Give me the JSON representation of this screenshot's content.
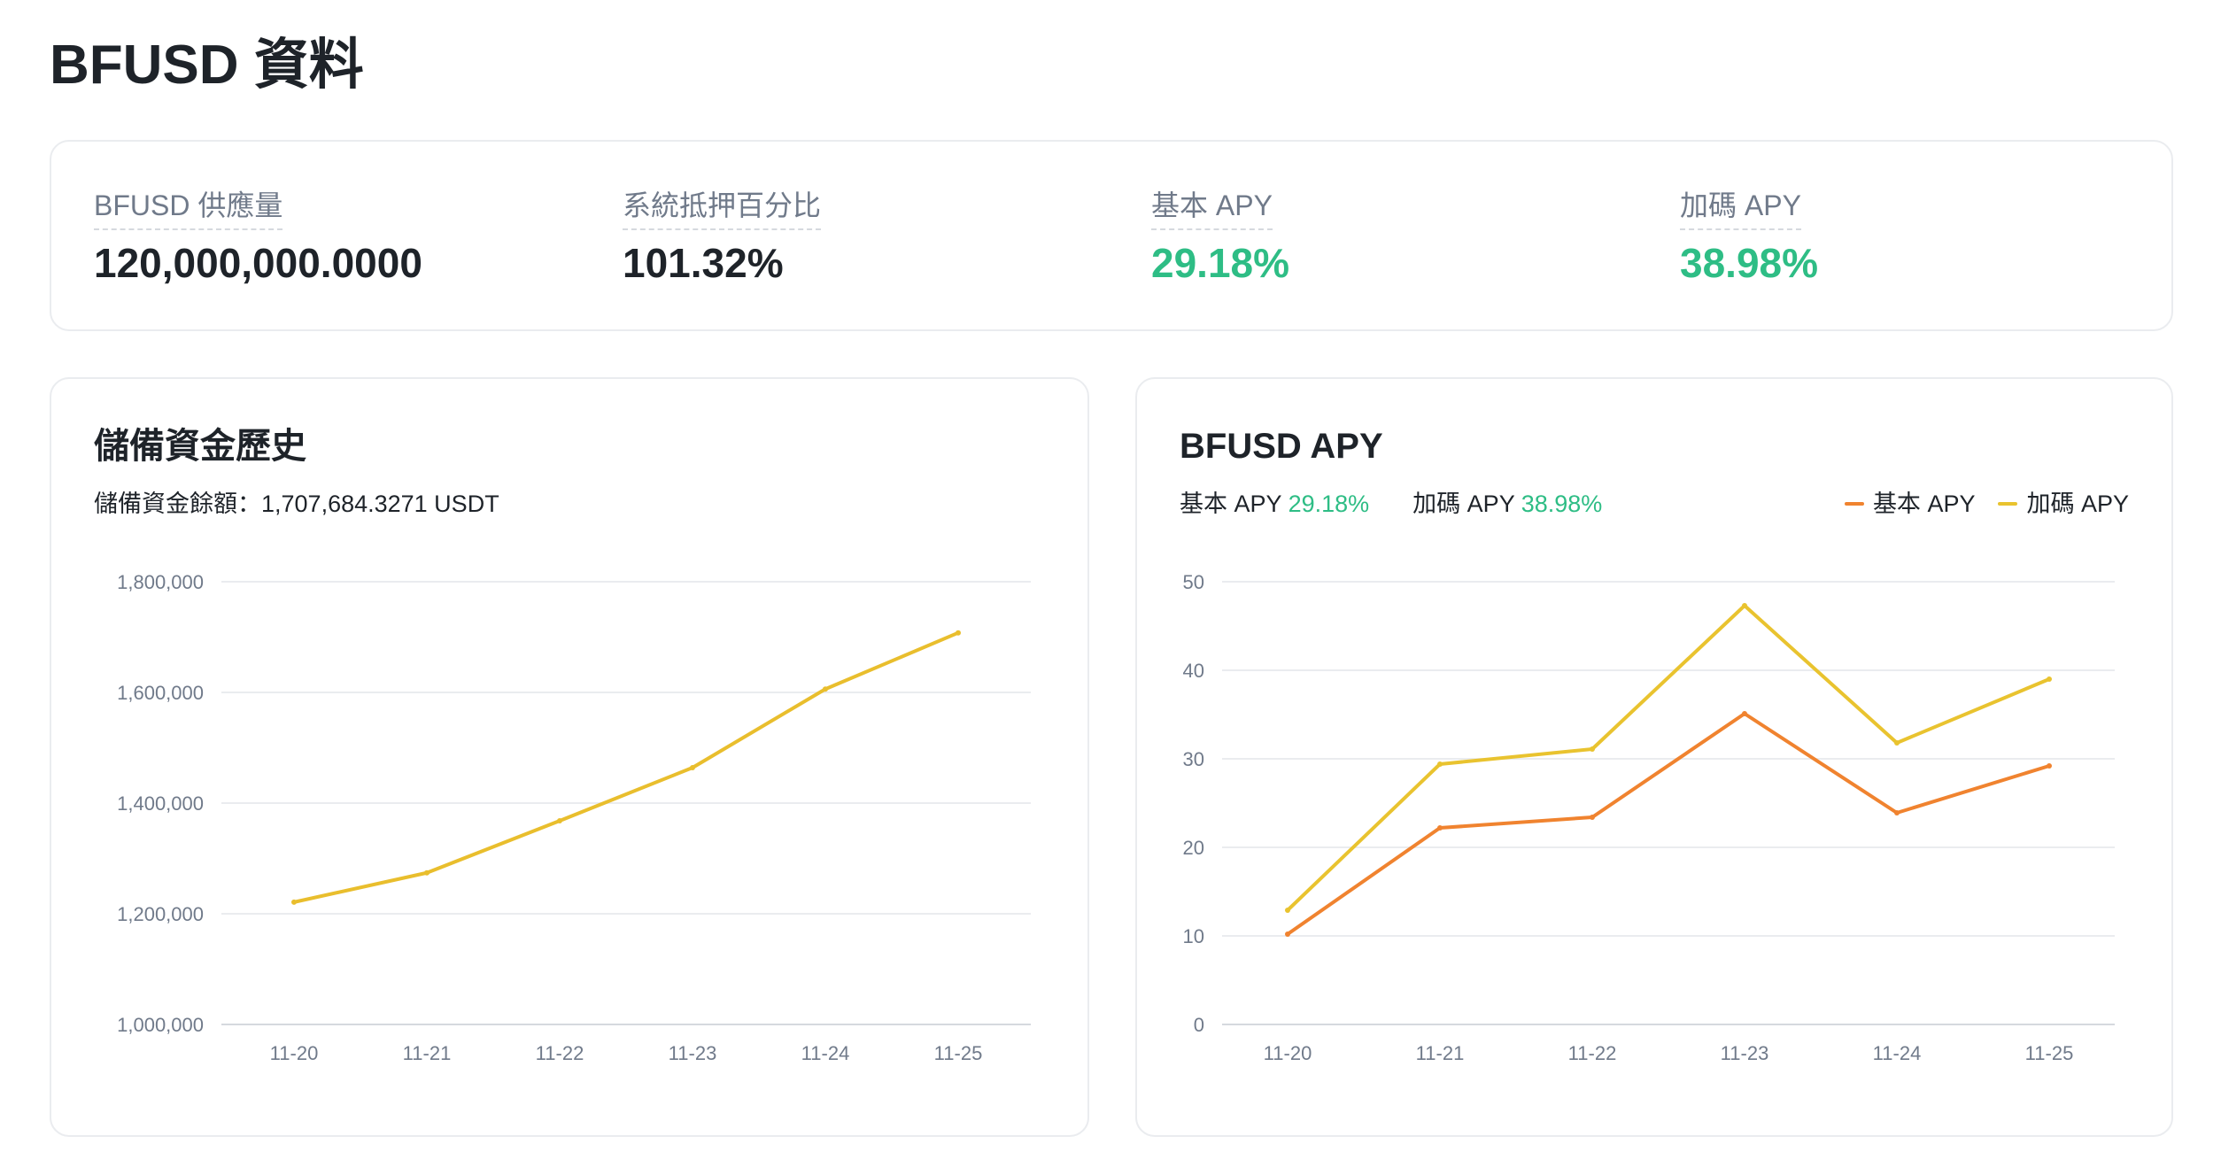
{
  "page": {
    "title": "BFUSD 資料"
  },
  "stats": [
    {
      "label": "BFUSD 供應量",
      "value": "120,000,000.0000",
      "positive": false
    },
    {
      "label": "系統抵押百分比",
      "value": "101.32%",
      "positive": false
    },
    {
      "label": "基本 APY",
      "value": "29.18%",
      "positive": true
    },
    {
      "label": "加碼 APY",
      "value": "38.98%",
      "positive": true
    }
  ],
  "reserve_chart": {
    "title": "儲備資金歷史",
    "summary_label": "儲備資金餘額：",
    "summary_value": "1,707,684.3271 USDT"
  },
  "apy_chart": {
    "title": "BFUSD APY",
    "base_label": "基本 APY",
    "base_value": "29.18%",
    "boost_label": "加碼 APY",
    "boost_value": "38.98%",
    "legend": [
      {
        "name": "基本 APY",
        "color": "#f0832f"
      },
      {
        "name": "加碼 APY",
        "color": "#e9c32f"
      }
    ]
  },
  "colors": {
    "positive": "#2ebd85",
    "reserve_line": "#e9be2d",
    "base_line": "#f0832f",
    "boost_line": "#e9c32f"
  },
  "chart_data": [
    {
      "type": "line",
      "title": "儲備資金歷史",
      "categories": [
        "11-20",
        "11-21",
        "11-22",
        "11-23",
        "11-24",
        "11-25"
      ],
      "series": [
        {
          "values": [
            1221000,
            1274000,
            1368000,
            1464000,
            1606000,
            1707684
          ]
        }
      ],
      "yticks": [
        "1,000,000",
        "1,200,000",
        "1,400,000",
        "1,600,000",
        "1,800,000"
      ],
      "ylim": [
        1000000,
        1800000
      ],
      "grid": true
    },
    {
      "type": "line",
      "title": "BFUSD APY",
      "categories": [
        "11-20",
        "11-21",
        "11-22",
        "11-23",
        "11-24",
        "11-25"
      ],
      "series": [
        {
          "name": "基本 APY",
          "values": [
            10.2,
            22.2,
            23.4,
            35.1,
            23.9,
            29.2
          ]
        },
        {
          "name": "加碼 APY",
          "values": [
            12.9,
            29.4,
            31.1,
            47.3,
            31.8,
            39.0
          ]
        }
      ],
      "yticks": [
        "0",
        "10",
        "20",
        "30",
        "40",
        "50"
      ],
      "ylim": [
        0,
        50
      ],
      "grid": true,
      "legend_position": "top-right"
    }
  ]
}
